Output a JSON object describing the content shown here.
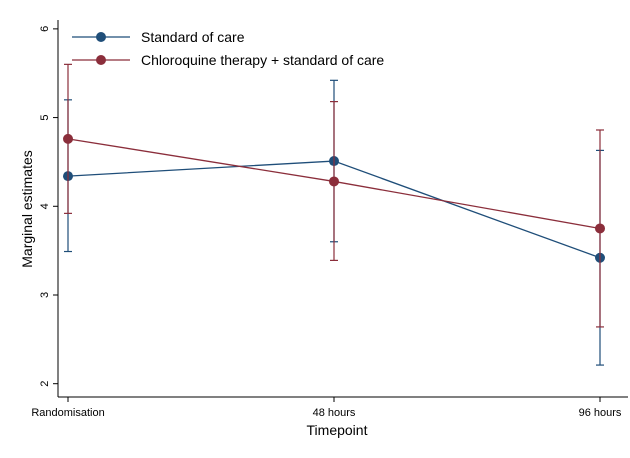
{
  "chart_data": {
    "type": "line",
    "title": "",
    "xlabel": "Timepoint",
    "ylabel": "Marginal estimates",
    "categories": [
      "Randomisation",
      "48 hours",
      "96 hours"
    ],
    "y_ticks": [
      "2",
      "3",
      "4",
      "5",
      "6"
    ],
    "ylim": [
      1.85,
      6.1
    ],
    "grid": false,
    "legend_position": "top-left",
    "series": [
      {
        "name": "Standard of care",
        "color": "#1f4e79",
        "values": [
          4.34,
          4.51,
          3.42
        ],
        "ci_lower": [
          3.49,
          3.6,
          2.21
        ],
        "ci_upper": [
          5.2,
          5.42,
          4.63
        ]
      },
      {
        "name": "Chloroquine therapy + standard of care",
        "color": "#8b2e3b",
        "values": [
          4.76,
          4.28,
          3.75
        ],
        "ci_lower": [
          3.92,
          3.39,
          2.64
        ],
        "ci_upper": [
          5.6,
          5.18,
          4.86
        ]
      }
    ]
  }
}
